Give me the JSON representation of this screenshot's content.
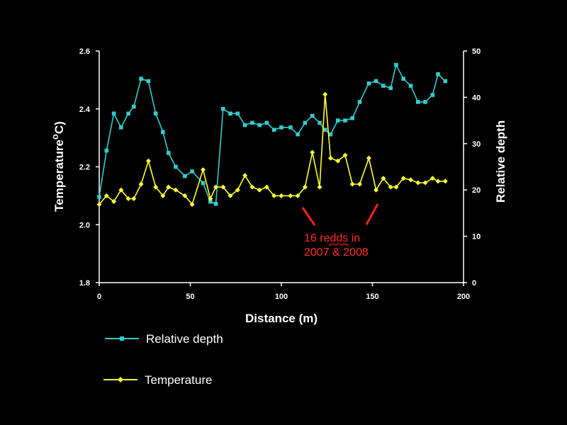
{
  "chart_data": {
    "type": "line",
    "xlabel": "Distance (m)",
    "ylabel_left": "Temperature",
    "ylabel_left_sup": "o",
    "ylabel_left_unit": "C)",
    "ylabel_right": "Relative depth",
    "xlim": [
      0,
      200
    ],
    "ylim_left": [
      1.8,
      2.6
    ],
    "ylim_right": [
      0,
      50
    ],
    "x_ticks": [
      "0",
      "50",
      "100",
      "150",
      "200"
    ],
    "y_left_ticks": [
      "1.8",
      "2.0",
      "2.2",
      "2.4",
      "2.6"
    ],
    "y_right_ticks": [
      "0",
      "10",
      "20",
      "30",
      "40",
      "50"
    ],
    "series": [
      {
        "name": "Relative depth",
        "axis": "right",
        "color": "#33cccc",
        "marker": "square",
        "x": [
          0,
          4,
          8,
          12,
          16,
          19,
          23,
          27,
          31,
          35,
          38,
          42,
          47,
          51,
          57,
          61,
          64,
          68,
          72,
          76,
          80,
          84,
          88,
          92,
          96,
          100,
          105,
          109,
          113,
          117,
          121,
          124,
          127,
          131,
          135,
          139,
          143,
          148,
          152,
          156,
          160,
          163,
          167,
          171,
          175,
          179,
          183,
          186,
          190
        ],
        "y": [
          18.5,
          28.5,
          36.5,
          33.5,
          36.5,
          38,
          44,
          43.5,
          36.5,
          32.5,
          28,
          25,
          23,
          24,
          21.5,
          17.5,
          17,
          37.5,
          36.5,
          36.5,
          34,
          34.5,
          34,
          34.5,
          33,
          33.5,
          33.5,
          32,
          34.5,
          36,
          34.5,
          33,
          32,
          35,
          35,
          35.5,
          39,
          43,
          43.5,
          42.5,
          42,
          47,
          44,
          42.5,
          39,
          39,
          40.5,
          45,
          43.5
        ]
      },
      {
        "name": "Temperature",
        "axis": "left",
        "color": "#ffff33",
        "marker": "diamond",
        "x": [
          0,
          4,
          8,
          12,
          16,
          19,
          23,
          27,
          31,
          35,
          38,
          42,
          47,
          51,
          57,
          61,
          64,
          68,
          72,
          76,
          80,
          84,
          88,
          92,
          96,
          100,
          105,
          109,
          113,
          117,
          121,
          124,
          127,
          131,
          135,
          139,
          143,
          148,
          152,
          156,
          160,
          163,
          167,
          171,
          175,
          179,
          183,
          186,
          190
        ],
        "y": [
          2.07,
          2.1,
          2.08,
          2.12,
          2.09,
          2.09,
          2.14,
          2.22,
          2.13,
          2.1,
          2.13,
          2.12,
          2.1,
          2.07,
          2.19,
          2.09,
          2.13,
          2.13,
          2.1,
          2.12,
          2.17,
          2.13,
          2.12,
          2.13,
          2.1,
          2.1,
          2.1,
          2.1,
          2.13,
          2.25,
          2.13,
          2.45,
          2.23,
          2.22,
          2.24,
          2.14,
          2.14,
          2.23,
          2.12,
          2.16,
          2.13,
          2.13,
          2.16,
          2.155,
          2.145,
          2.145,
          2.16,
          2.15,
          2.15
        ]
      }
    ],
    "annotation": {
      "line1": "16 redds in",
      "line2": "2007 & 2008",
      "color": "#ff2a2a"
    }
  }
}
